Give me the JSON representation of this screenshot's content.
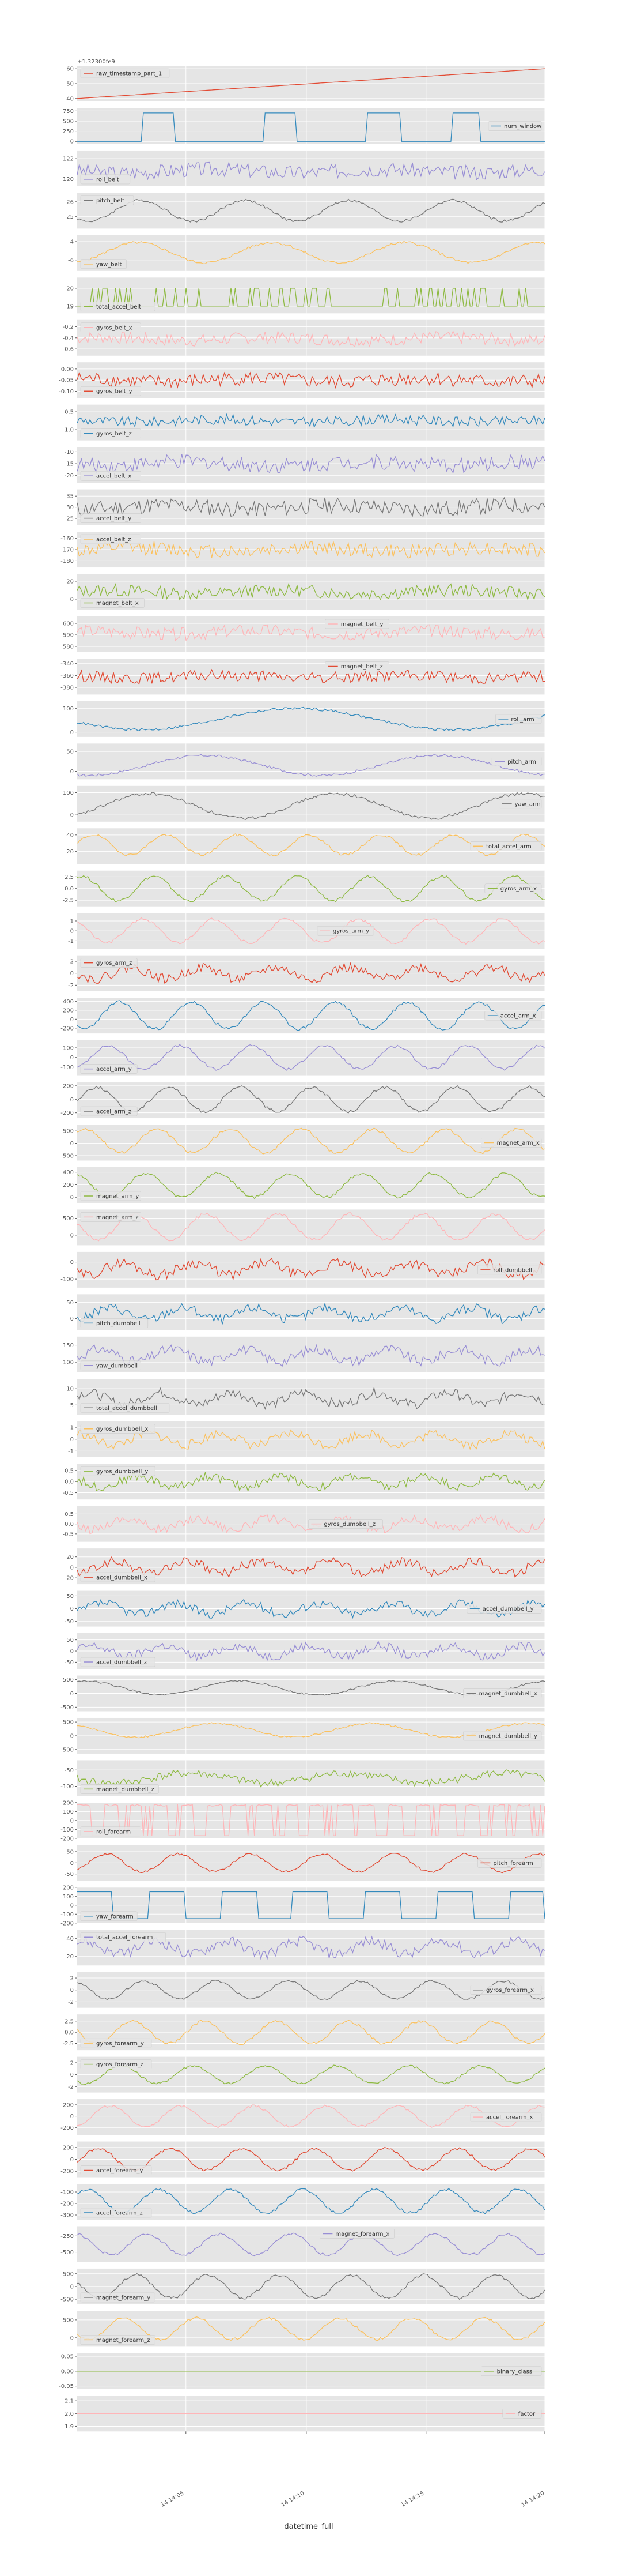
{
  "figure": {
    "offset_label": "+1.32300fe9",
    "xlabel": "datetime_full",
    "x_tick_labels": [
      "14 14:05",
      "14 14:10",
      "14 14:15",
      "14 14:20"
    ]
  },
  "chart_data": {
    "type": "line",
    "xlabel": "datetime_full",
    "x_ticks": [
      "14 14:05",
      "14 14:10",
      "14 14:15",
      "14 14:20"
    ],
    "x_domain": [
      0,
      1
    ],
    "grid": true,
    "series": [
      {
        "name": "raw_timestamp_part_1",
        "color": "#e24a33",
        "yticks": [
          "60",
          "50",
          "40"
        ],
        "ylim": [
          38,
          62
        ],
        "kind": "ramp",
        "start": 40,
        "end": 60,
        "legend": "top-left"
      },
      {
        "name": "num_window",
        "color": "#348abd",
        "yticks": [
          "750",
          "500",
          "250",
          "0"
        ],
        "ylim": [
          -60,
          820
        ],
        "kind": "pulses",
        "low": 0,
        "high": 700,
        "pulses": [
          [
            0.14,
            0.21
          ],
          [
            0.4,
            0.47
          ],
          [
            0.62,
            0.69
          ],
          [
            0.8,
            0.86
          ]
        ],
        "legend": "right"
      },
      {
        "name": "roll_belt",
        "color": "#988ed5",
        "yticks": [
          "122",
          "120"
        ],
        "ylim": [
          119.3,
          122.8
        ],
        "kind": "noise",
        "base": 120.8,
        "amp": 0.9,
        "seed": 3,
        "legend": "bottom-left"
      },
      {
        "name": "pitch_belt",
        "color": "#777777",
        "yticks": [
          "26",
          "25"
        ],
        "ylim": [
          24.2,
          26.6
        ],
        "kind": "wave",
        "base": 25.4,
        "amp": 0.7,
        "freq": 9,
        "seed": 4,
        "legend": "top-left"
      },
      {
        "name": "yaw_belt",
        "color": "#fbc15e",
        "yticks": [
          "-4",
          "-6"
        ],
        "ylim": [
          -7.2,
          -3.3
        ],
        "kind": "wave",
        "base": -5.2,
        "amp": 1.1,
        "freq": 7,
        "seed": 5,
        "legend": "bottom-left"
      },
      {
        "name": "total_accel_belt",
        "color": "#8eba42",
        "yticks": [
          "20",
          "19"
        ],
        "ylim": [
          18.6,
          20.6
        ],
        "kind": "binary",
        "low": 19,
        "high": 20,
        "seed": 6,
        "legend": "bottom-left"
      },
      {
        "name": "gyros_belt_x",
        "color": "#ffb5b8",
        "yticks": [
          "-0.2",
          "-0.4",
          "-0.6"
        ],
        "ylim": [
          -0.72,
          -0.08
        ],
        "kind": "noise",
        "base": -0.42,
        "amp": 0.14,
        "seed": 7,
        "legend": "top-left"
      },
      {
        "name": "gyros_belt_y",
        "color": "#e24a33",
        "yticks": [
          "0.00",
          "-0.05",
          "-0.10"
        ],
        "ylim": [
          -0.13,
          0.03
        ],
        "kind": "noise",
        "base": -0.05,
        "amp": 0.04,
        "seed": 8,
        "legend": "bottom-left"
      },
      {
        "name": "gyros_belt_z",
        "color": "#348abd",
        "yticks": [
          "-0.5",
          "-1.0"
        ],
        "ylim": [
          -1.3,
          -0.3
        ],
        "kind": "noise",
        "base": -0.75,
        "amp": 0.18,
        "seed": 9,
        "legend": "bottom-left"
      },
      {
        "name": "accel_belt_x",
        "color": "#988ed5",
        "yticks": [
          "-10",
          "-15",
          "-20"
        ],
        "ylim": [
          -23,
          -8
        ],
        "kind": "noise",
        "base": -15,
        "amp": 4,
        "seed": 10,
        "legend": "bottom-left"
      },
      {
        "name": "accel_belt_y",
        "color": "#777777",
        "yticks": [
          "35",
          "30",
          "25"
        ],
        "ylim": [
          22,
          38
        ],
        "kind": "noise",
        "base": 30,
        "amp": 4.5,
        "seed": 11,
        "legend": "bottom-left"
      },
      {
        "name": "accel_belt_z",
        "color": "#fbc15e",
        "yticks": [
          "-160",
          "-170",
          "-180"
        ],
        "ylim": [
          -186,
          -154
        ],
        "kind": "noise",
        "base": -170,
        "amp": 8,
        "seed": 12,
        "legend": "top-left"
      },
      {
        "name": "magnet_belt_x",
        "color": "#8eba42",
        "yticks": [
          "20",
          "0"
        ],
        "ylim": [
          -12,
          28
        ],
        "kind": "noise",
        "base": 8,
        "amp": 9,
        "seed": 13,
        "legend": "bottom-left"
      },
      {
        "name": "magnet_belt_y",
        "color": "#ffb5b8",
        "yticks": [
          "600",
          "590",
          "580"
        ],
        "ylim": [
          575,
          606
        ],
        "kind": "noise",
        "base": 592,
        "amp": 7,
        "seed": 14,
        "legend": "top-center"
      },
      {
        "name": "magnet_belt_z",
        "color": "#e24a33",
        "yticks": [
          "-340",
          "-360",
          "-380"
        ],
        "ylim": [
          -392,
          -332
        ],
        "kind": "noise",
        "base": -362,
        "amp": 12,
        "seed": 15,
        "legend": "top-center"
      },
      {
        "name": "roll_arm",
        "color": "#348abd",
        "yticks": [
          "100",
          "0"
        ],
        "ylim": [
          -20,
          130
        ],
        "kind": "wave",
        "base": 55,
        "amp": 45,
        "freq": 3,
        "seed": 16,
        "legend": "right"
      },
      {
        "name": "pitch_arm",
        "color": "#988ed5",
        "yticks": [
          "50",
          "0"
        ],
        "ylim": [
          -20,
          70
        ],
        "kind": "wave",
        "base": 15,
        "amp": 25,
        "freq": 4,
        "seed": 17,
        "legend": "right"
      },
      {
        "name": "yaw_arm",
        "color": "#777777",
        "yticks": [
          "100",
          "0"
        ],
        "ylim": [
          -30,
          130
        ],
        "kind": "wave",
        "base": 40,
        "amp": 55,
        "freq": 5,
        "seed": 18,
        "legend": "right"
      },
      {
        "name": "total_accel_arm",
        "color": "#fbc15e",
        "yticks": [
          "40",
          "20"
        ],
        "ylim": [
          5,
          48
        ],
        "kind": "wave",
        "base": 28,
        "amp": 12,
        "freq": 13,
        "seed": 19,
        "legend": "right"
      },
      {
        "name": "gyros_arm_x",
        "color": "#8eba42",
        "yticks": [
          "2.5",
          "0.0",
          "-2.5"
        ],
        "ylim": [
          -3.8,
          3.8
        ],
        "kind": "wave",
        "base": 0,
        "amp": 2.6,
        "freq": 13,
        "seed": 20,
        "legend": "right"
      },
      {
        "name": "gyros_arm_y",
        "color": "#ffb5b8",
        "yticks": [
          "1",
          "0",
          "-1"
        ],
        "ylim": [
          -1.8,
          1.8
        ],
        "kind": "wave",
        "base": 0,
        "amp": 1.2,
        "freq": 13,
        "seed": 21,
        "legend": "center"
      },
      {
        "name": "gyros_arm_z",
        "color": "#e24a33",
        "yticks": [
          "2",
          "0",
          "-2"
        ],
        "ylim": [
          -3,
          3
        ],
        "kind": "noisewave",
        "base": 0,
        "amp": 1.6,
        "freq": 13,
        "seed": 22,
        "legend": "top-left"
      },
      {
        "name": "accel_arm_x",
        "color": "#348abd",
        "yticks": [
          "400",
          "200",
          "0",
          "-200"
        ],
        "ylim": [
          -320,
          480
        ],
        "kind": "wave",
        "base": 80,
        "amp": 300,
        "freq": 13,
        "seed": 23,
        "legend": "right"
      },
      {
        "name": "accel_arm_y",
        "color": "#988ed5",
        "yticks": [
          "100",
          "0",
          "-100"
        ],
        "ylim": [
          -190,
          180
        ],
        "kind": "wave",
        "base": 0,
        "amp": 120,
        "freq": 13,
        "seed": 24,
        "legend": "bottom-left"
      },
      {
        "name": "accel_arm_z",
        "color": "#777777",
        "yticks": [
          "200",
          "0",
          "-200"
        ],
        "ylim": [
          -280,
          250
        ],
        "kind": "wave",
        "base": 0,
        "amp": 180,
        "freq": 13,
        "seed": 25,
        "legend": "bottom-left"
      },
      {
        "name": "magnet_arm_x",
        "color": "#fbc15e",
        "yticks": [
          "500",
          "0",
          "-500"
        ],
        "ylim": [
          -700,
          750
        ],
        "kind": "wave",
        "base": 100,
        "amp": 480,
        "freq": 13,
        "seed": 26,
        "legend": "right"
      },
      {
        "name": "magnet_arm_y",
        "color": "#8eba42",
        "yticks": [
          "400",
          "200",
          "0"
        ],
        "ylim": [
          -90,
          480
        ],
        "kind": "wave",
        "base": 190,
        "amp": 190,
        "freq": 13,
        "seed": 27,
        "legend": "bottom-left"
      },
      {
        "name": "magnet_arm_z",
        "color": "#ffb5b8",
        "yticks": [
          "500",
          "0"
        ],
        "ylim": [
          -300,
          760
        ],
        "kind": "wave",
        "base": 250,
        "amp": 380,
        "freq": 13,
        "seed": 28,
        "legend": "top-left"
      },
      {
        "name": "roll_dumbbell",
        "color": "#e24a33",
        "yticks": [
          "0",
          "-100"
        ],
        "ylim": [
          -150,
          60
        ],
        "kind": "noisewave",
        "base": -40,
        "amp": 60,
        "freq": 13,
        "seed": 29,
        "legend": "right"
      },
      {
        "name": "pitch_dumbbell",
        "color": "#348abd",
        "yticks": [
          "50",
          "0"
        ],
        "ylim": [
          -35,
          75
        ],
        "kind": "noisewave",
        "base": 15,
        "amp": 30,
        "freq": 13,
        "seed": 30,
        "legend": "bottom-left"
      },
      {
        "name": "yaw_dumbbell",
        "color": "#988ed5",
        "yticks": [
          "150",
          "100"
        ],
        "ylim": [
          70,
          175
        ],
        "kind": "noisewave",
        "base": 120,
        "amp": 30,
        "freq": 13,
        "seed": 31,
        "legend": "bottom-left"
      },
      {
        "name": "total_accel_dumbbell",
        "color": "#777777",
        "yticks": [
          "10",
          "5"
        ],
        "ylim": [
          2,
          13
        ],
        "kind": "noisewave",
        "base": 7,
        "amp": 3,
        "freq": 13,
        "seed": 32,
        "legend": "bottom-left"
      },
      {
        "name": "gyros_dumbbell_x",
        "color": "#fbc15e",
        "yticks": [
          "1",
          "0",
          "-1"
        ],
        "ylim": [
          -1.5,
          1.5
        ],
        "kind": "noisewave",
        "base": 0,
        "amp": 0.8,
        "freq": 13,
        "seed": 33,
        "legend": "top-left"
      },
      {
        "name": "gyros_dumbbell_y",
        "color": "#8eba42",
        "yticks": [
          "0.5",
          "0.0",
          "-0.5"
        ],
        "ylim": [
          -0.8,
          0.8
        ],
        "kind": "noisewave",
        "base": 0,
        "amp": 0.4,
        "freq": 13,
        "seed": 34,
        "legend": "top-left"
      },
      {
        "name": "gyros_dumbbell_z",
        "color": "#ffb5b8",
        "yticks": [
          "0.5",
          "0.0",
          "-0.5"
        ],
        "ylim": [
          -0.9,
          0.9
        ],
        "kind": "noisewave",
        "base": 0,
        "amp": 0.45,
        "freq": 13,
        "seed": 35,
        "legend": "center"
      },
      {
        "name": "accel_dumbbell_x",
        "color": "#e24a33",
        "yticks": [
          "20",
          "0",
          "-20"
        ],
        "ylim": [
          -32,
          36
        ],
        "kind": "noisewave",
        "base": 0,
        "amp": 18,
        "freq": 13,
        "seed": 36,
        "legend": "bottom-left"
      },
      {
        "name": "accel_dumbbell_y",
        "color": "#348abd",
        "yticks": [
          "50",
          "0",
          "-50"
        ],
        "ylim": [
          -70,
          70
        ],
        "kind": "noisewave",
        "base": 0,
        "amp": 35,
        "freq": 13,
        "seed": 37,
        "legend": "right"
      },
      {
        "name": "accel_dumbbell_z",
        "color": "#988ed5",
        "yticks": [
          "50",
          "0",
          "-50"
        ],
        "ylim": [
          -80,
          80
        ],
        "kind": "noisewave",
        "base": 0,
        "amp": 40,
        "freq": 13,
        "seed": 38,
        "legend": "bottom-left"
      },
      {
        "name": "magnet_dumbbell_x",
        "color": "#777777",
        "yticks": [
          "500",
          "0",
          "-500"
        ],
        "ylim": [
          -650,
          650
        ],
        "kind": "wave",
        "base": 200,
        "amp": 250,
        "freq": 6,
        "seed": 39,
        "legend": "right"
      },
      {
        "name": "magnet_dumbbell_y",
        "color": "#fbc15e",
        "yticks": [
          "500",
          "0",
          "-500"
        ],
        "ylim": [
          -650,
          650
        ],
        "kind": "wave",
        "base": 200,
        "amp": 250,
        "freq": 6,
        "seed": 40,
        "legend": "right"
      },
      {
        "name": "magnet_dumbbell_z",
        "color": "#8eba42",
        "yticks": [
          "-50",
          "-100"
        ],
        "ylim": [
          -130,
          -20
        ],
        "kind": "noisewave",
        "base": -75,
        "amp": 25,
        "freq": 6,
        "seed": 41,
        "legend": "bottom-left"
      },
      {
        "name": "roll_forearm",
        "color": "#ffb5b8",
        "yticks": [
          "200",
          "100",
          "0",
          "-100",
          "-200"
        ],
        "ylim": [
          -200,
          200
        ],
        "kind": "spikes",
        "base": 170,
        "low": -170,
        "count": 18,
        "seed": 42,
        "legend": "bottom-left"
      },
      {
        "name": "pitch_forearm",
        "color": "#e24a33",
        "yticks": [
          "50",
          "0",
          "-50"
        ],
        "ylim": [
          -80,
          80
        ],
        "kind": "wave",
        "base": 0,
        "amp": 40,
        "freq": 13,
        "seed": 43,
        "legend": "right"
      },
      {
        "name": "yaw_forearm",
        "color": "#348abd",
        "yticks": [
          "200",
          "100",
          "0",
          "-100",
          "-200"
        ],
        "ylim": [
          -200,
          200
        ],
        "kind": "square",
        "base": 150,
        "low": -150,
        "freq": 13,
        "seed": 44,
        "legend": "bottom-left"
      },
      {
        "name": "total_accel_forearm",
        "color": "#988ed5",
        "yticks": [
          "40",
          "20"
        ],
        "ylim": [
          10,
          50
        ],
        "kind": "noisewave",
        "base": 30,
        "amp": 12,
        "freq": 13,
        "seed": 45,
        "legend": "top-left"
      },
      {
        "name": "gyros_forearm_x",
        "color": "#777777",
        "yticks": [
          "2",
          "0",
          "-2"
        ],
        "ylim": [
          -3,
          3
        ],
        "kind": "wave",
        "base": 0,
        "amp": 1.5,
        "freq": 13,
        "seed": 46,
        "legend": "right"
      },
      {
        "name": "gyros_forearm_y",
        "color": "#fbc15e",
        "yticks": [
          "2.5",
          "0.0",
          "-2.5"
        ],
        "ylim": [
          -4,
          4
        ],
        "kind": "wave",
        "base": 0,
        "amp": 2.5,
        "freq": 13,
        "seed": 47,
        "legend": "bottom-left"
      },
      {
        "name": "gyros_forearm_z",
        "color": "#8eba42",
        "yticks": [
          "2",
          "0",
          "-2"
        ],
        "ylim": [
          -3,
          3
        ],
        "kind": "wave",
        "base": 0,
        "amp": 1.5,
        "freq": 13,
        "seed": 48,
        "legend": "top-left"
      },
      {
        "name": "accel_forearm_x",
        "color": "#ffb5b8",
        "yticks": [
          "200",
          "0",
          "-200"
        ],
        "ylim": [
          -330,
          300
        ],
        "kind": "wave",
        "base": 0,
        "amp": 180,
        "freq": 13,
        "seed": 49,
        "legend": "right"
      },
      {
        "name": "accel_forearm_y",
        "color": "#e24a33",
        "yticks": [
          "200",
          "0",
          "-200"
        ],
        "ylim": [
          -300,
          300
        ],
        "kind": "wave",
        "base": 0,
        "amp": 180,
        "freq": 13,
        "seed": 50,
        "legend": "bottom-left"
      },
      {
        "name": "accel_forearm_z",
        "color": "#348abd",
        "yticks": [
          "-100",
          "-200",
          "-300"
        ],
        "ylim": [
          -340,
          -30
        ],
        "kind": "wave",
        "base": -180,
        "amp": 100,
        "freq": 13,
        "seed": 51,
        "legend": "bottom-left"
      },
      {
        "name": "magnet_forearm_x",
        "color": "#988ed5",
        "yticks": [
          "-250",
          "-500"
        ],
        "ylim": [
          -650,
          -100
        ],
        "kind": "wave",
        "base": -380,
        "amp": 160,
        "freq": 13,
        "seed": 52,
        "legend": "top-center"
      },
      {
        "name": "magnet_forearm_y",
        "color": "#777777",
        "yticks": [
          "500",
          "0",
          "-500"
        ],
        "ylim": [
          -700,
          700
        ],
        "kind": "wave",
        "base": 0,
        "amp": 450,
        "freq": 13,
        "seed": 53,
        "legend": "bottom-left"
      },
      {
        "name": "magnet_forearm_z",
        "color": "#fbc15e",
        "yticks": [
          "500",
          "0"
        ],
        "ylim": [
          -250,
          750
        ],
        "kind": "wave",
        "base": 250,
        "amp": 300,
        "freq": 13,
        "seed": 54,
        "legend": "bottom-left"
      },
      {
        "name": "binary_class",
        "color": "#8eba42",
        "yticks": [
          "0.05",
          "0.00",
          "-0.05"
        ],
        "ylim": [
          -0.06,
          0.06
        ],
        "kind": "flat",
        "base": 0,
        "legend": "right"
      },
      {
        "name": "factor",
        "color": "#ffb5b8",
        "yticks": [
          "2.1",
          "2.0",
          "1.9"
        ],
        "ylim": [
          1.86,
          2.14
        ],
        "kind": "flat",
        "base": 2.0,
        "legend": "right"
      }
    ]
  }
}
